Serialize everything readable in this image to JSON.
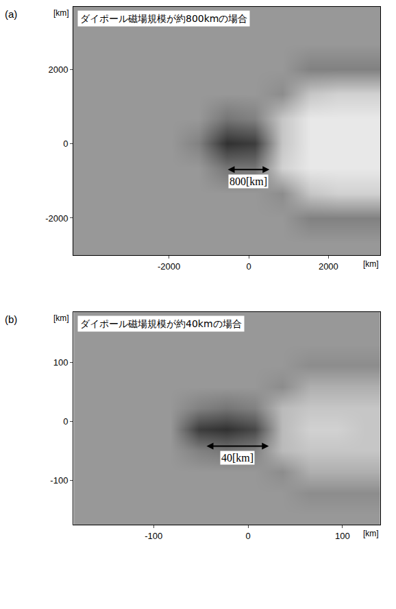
{
  "chart_data": [
    {
      "type": "heatmap",
      "label": "(a)",
      "title": "ダイポール磁場規模が約800kmの場合",
      "xlabel": "[km]",
      "ylabel": "[km]",
      "x": [
        -4050,
        -3350,
        -2650,
        -1950,
        -1250,
        -550,
        150,
        850,
        1550,
        2250,
        2950
      ],
      "y": [
        -2665,
        -1995,
        -1325,
        -655,
        15,
        685,
        1355,
        2025,
        2695,
        3365
      ],
      "z": [
        [
          0.45,
          0.45,
          0.45,
          0.45,
          0.45,
          0.45,
          0.45,
          0.45,
          0.45,
          0.45,
          0.45
        ],
        [
          0.45,
          0.45,
          0.45,
          0.45,
          0.45,
          0.45,
          0.45,
          0.45,
          0.55,
          0.55,
          0.55
        ],
        [
          0.45,
          0.45,
          0.45,
          0.45,
          0.45,
          0.45,
          0.45,
          0.5,
          0.25,
          0.2,
          0.2
        ],
        [
          0.45,
          0.45,
          0.45,
          0.45,
          0.45,
          0.6,
          0.6,
          0.2,
          0.1,
          0.1,
          0.1
        ],
        [
          0.45,
          0.45,
          0.45,
          0.45,
          0.55,
          0.9,
          0.85,
          0.25,
          0.1,
          0.1,
          0.1
        ],
        [
          0.45,
          0.45,
          0.45,
          0.45,
          0.45,
          0.6,
          0.55,
          0.25,
          0.1,
          0.1,
          0.1
        ],
        [
          0.45,
          0.45,
          0.45,
          0.45,
          0.45,
          0.45,
          0.45,
          0.5,
          0.25,
          0.2,
          0.2
        ],
        [
          0.45,
          0.45,
          0.45,
          0.45,
          0.45,
          0.45,
          0.45,
          0.45,
          0.55,
          0.55,
          0.55
        ],
        [
          0.45,
          0.45,
          0.45,
          0.45,
          0.45,
          0.45,
          0.45,
          0.45,
          0.45,
          0.45,
          0.45
        ],
        [
          0.45,
          0.45,
          0.45,
          0.45,
          0.45,
          0.45,
          0.45,
          0.45,
          0.45,
          0.45,
          0.45
        ]
      ],
      "color_range": [
        0,
        1
      ],
      "xlim": [
        -4400,
        3300
      ],
      "ylim": [
        -3000,
        3700
      ],
      "xticks": [
        -2000,
        0,
        2000
      ],
      "yticks": [
        -2000,
        0,
        2000
      ],
      "grid": false,
      "annotations": [
        {
          "text": "800[km]",
          "x": [
            -550,
            520
          ],
          "y": -690
        }
      ]
    },
    {
      "type": "heatmap",
      "label": "(b)",
      "title": "ダイポール磁場規模が約40kmの場合",
      "xlabel": "[km]",
      "ylabel": "[km]",
      "x": [
        -170,
        -141,
        -111,
        -82,
        -52,
        -23,
        7,
        36,
        66,
        95,
        125
      ],
      "y": [
        -157,
        -121,
        -85,
        -49,
        -13,
        23,
        59,
        95,
        131,
        167
      ],
      "z": [
        [
          0.45,
          0.45,
          0.45,
          0.45,
          0.45,
          0.45,
          0.45,
          0.45,
          0.45,
          0.45,
          0.45
        ],
        [
          0.45,
          0.45,
          0.45,
          0.45,
          0.45,
          0.45,
          0.45,
          0.45,
          0.5,
          0.5,
          0.5
        ],
        [
          0.45,
          0.45,
          0.45,
          0.45,
          0.45,
          0.45,
          0.45,
          0.5,
          0.35,
          0.35,
          0.35
        ],
        [
          0.45,
          0.45,
          0.45,
          0.45,
          0.55,
          0.6,
          0.55,
          0.3,
          0.25,
          0.25,
          0.25
        ],
        [
          0.45,
          0.45,
          0.45,
          0.45,
          0.85,
          0.9,
          0.8,
          0.3,
          0.2,
          0.2,
          0.25
        ],
        [
          0.45,
          0.45,
          0.45,
          0.45,
          0.55,
          0.6,
          0.55,
          0.3,
          0.25,
          0.25,
          0.25
        ],
        [
          0.45,
          0.45,
          0.45,
          0.45,
          0.45,
          0.45,
          0.45,
          0.5,
          0.35,
          0.35,
          0.35
        ],
        [
          0.45,
          0.45,
          0.45,
          0.45,
          0.45,
          0.45,
          0.45,
          0.45,
          0.5,
          0.5,
          0.5
        ],
        [
          0.45,
          0.45,
          0.45,
          0.45,
          0.45,
          0.45,
          0.45,
          0.45,
          0.45,
          0.45,
          0.45
        ],
        [
          0.45,
          0.45,
          0.45,
          0.45,
          0.45,
          0.45,
          0.45,
          0.45,
          0.45,
          0.45,
          0.45
        ]
      ],
      "color_range": [
        0,
        1
      ],
      "xlim": [
        -185,
        140
      ],
      "ylim": [
        -175,
        185
      ],
      "xticks": [
        -100,
        0,
        100
      ],
      "yticks": [
        -100,
        0,
        100
      ],
      "grid": false,
      "annotations": [
        {
          "text": "40[km]",
          "x": [
            -45,
            22
          ],
          "y": -42
        }
      ]
    }
  ]
}
